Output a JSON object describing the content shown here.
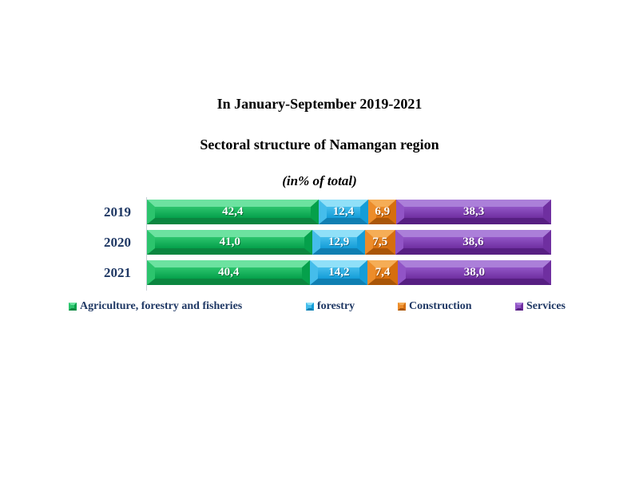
{
  "chart_data": {
    "type": "bar",
    "orientation": "horizontal_stacked",
    "title": "In January-September 2019-2021",
    "subtitle": "Sectoral structure of Namangan region",
    "units_note": "(in% of total)",
    "categories": [
      "2019",
      "2020",
      "2021"
    ],
    "series": [
      {
        "name": "Agriculture, forestry and fisheries",
        "values": [
          42.4,
          41.0,
          40.4
        ],
        "labels": [
          "42,4",
          "41,0",
          "40,4"
        ],
        "colors": {
          "light": "#6ce2a0",
          "body_top": "#2cc46d",
          "body_bottom": "#05a04b",
          "dark": "#0b8640"
        }
      },
      {
        "name": "forestry",
        "values": [
          12.4,
          12.9,
          14.2
        ],
        "labels": [
          "12,4",
          "12,9",
          "14,2"
        ],
        "colors": {
          "light": "#90e0f8",
          "body_top": "#45bdeb",
          "body_bottom": "#149dd8",
          "dark": "#0f7fb2"
        }
      },
      {
        "name": "Construction",
        "values": [
          6.9,
          7.5,
          7.4
        ],
        "labels": [
          "6,9",
          "7,5",
          "7,4"
        ],
        "colors": {
          "light": "#f5ad56",
          "body_top": "#ec8c2a",
          "body_bottom": "#d66e0e",
          "dark": "#aa5608"
        }
      },
      {
        "name": "Services",
        "values": [
          38.3,
          38.6,
          38.0
        ],
        "labels": [
          "38,3",
          "38,6",
          "38,0"
        ],
        "colors": {
          "light": "#ab7fd9",
          "body_top": "#9154c6",
          "body_bottom": "#6f2fa0",
          "dark": "#571f82"
        }
      }
    ],
    "xlim": [
      0,
      100
    ],
    "gridlines": false,
    "legend_position": "bottom",
    "value_format": "comma-decimal",
    "text_colors": {
      "title": "#000000",
      "year_labels": "#1f3864",
      "legend": "#1f3864",
      "bar_values": "#ffffff"
    }
  }
}
